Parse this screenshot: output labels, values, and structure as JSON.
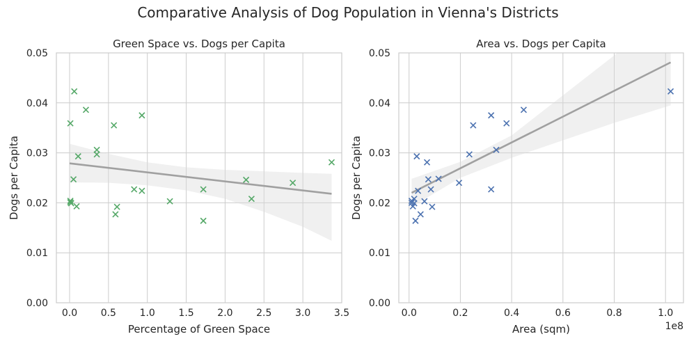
{
  "figure": {
    "suptitle": "Comparative Analysis of Dog Population in Vienna's Districts"
  },
  "chart_data": [
    {
      "type": "scatter",
      "title": "Green Space vs. Dogs per Capita",
      "xlabel": "Percentage of Green Space",
      "ylabel": "Dogs per Capita",
      "xlim": [
        -0.17,
        3.5
      ],
      "ylim": [
        0,
        0.05
      ],
      "xticks": [
        "0.0",
        "0.5",
        "1.0",
        "1.5",
        "2.0",
        "2.5",
        "3.0",
        "3.5"
      ],
      "xtick_values": [
        0,
        0.5,
        1.0,
        1.5,
        2.0,
        2.5,
        3.0,
        3.5
      ],
      "yticks": [
        "0.00",
        "0.01",
        "0.02",
        "0.03",
        "0.04",
        "0.05"
      ],
      "ytick_values": [
        0,
        0.01,
        0.02,
        0.03,
        0.04,
        0.05
      ],
      "grid": true,
      "marker": "x",
      "point_color": "#55a868",
      "regression_color": "#a0a0a0",
      "points": [
        {
          "x": 0.06,
          "y": 0.0423
        },
        {
          "x": 0.21,
          "y": 0.0386
        },
        {
          "x": 0.01,
          "y": 0.0359
        },
        {
          "x": 0.57,
          "y": 0.0355
        },
        {
          "x": 0.93,
          "y": 0.0375
        },
        {
          "x": 0.35,
          "y": 0.0306
        },
        {
          "x": 0.35,
          "y": 0.0297
        },
        {
          "x": 0.11,
          "y": 0.0293
        },
        {
          "x": 0.05,
          "y": 0.0247
        },
        {
          "x": 0.83,
          "y": 0.0227
        },
        {
          "x": 0.93,
          "y": 0.0224
        },
        {
          "x": 1.29,
          "y": 0.0203
        },
        {
          "x": 1.72,
          "y": 0.0227
        },
        {
          "x": 1.72,
          "y": 0.0164
        },
        {
          "x": 0.01,
          "y": 0.0204
        },
        {
          "x": 0.01,
          "y": 0.0201
        },
        {
          "x": 0.02,
          "y": 0.0199
        },
        {
          "x": 0.09,
          "y": 0.0193
        },
        {
          "x": 0.61,
          "y": 0.0192
        },
        {
          "x": 0.59,
          "y": 0.0177
        },
        {
          "x": 2.27,
          "y": 0.0246
        },
        {
          "x": 2.34,
          "y": 0.0208
        },
        {
          "x": 2.87,
          "y": 0.024
        },
        {
          "x": 3.37,
          "y": 0.0281
        }
      ],
      "regression": {
        "x0": 0.0,
        "y0": 0.0279,
        "x1": 3.37,
        "y1": 0.0218
      },
      "ci_upper": [
        [
          0.0,
          0.0318
        ],
        [
          0.5,
          0.0298
        ],
        [
          1.0,
          0.0281
        ],
        [
          1.5,
          0.0271
        ],
        [
          2.0,
          0.0266
        ],
        [
          2.5,
          0.0263
        ],
        [
          3.0,
          0.026
        ],
        [
          3.37,
          0.0258
        ]
      ],
      "ci_lower": [
        [
          0.0,
          0.0241
        ],
        [
          0.5,
          0.024
        ],
        [
          1.0,
          0.0235
        ],
        [
          1.5,
          0.0225
        ],
        [
          2.0,
          0.0208
        ],
        [
          2.5,
          0.0182
        ],
        [
          3.0,
          0.0152
        ],
        [
          3.37,
          0.0124
        ]
      ]
    },
    {
      "type": "scatter",
      "title": "Area vs. Dogs per Capita",
      "xlabel": "Area (sqm)",
      "ylabel": "Dogs per Capita",
      "offset_label": "1e8",
      "xlim": [
        -0.04,
        1.07
      ],
      "ylim": [
        0,
        0.05
      ],
      "xticks": [
        "0.0",
        "0.2",
        "0.4",
        "0.6",
        "0.8",
        "1.0"
      ],
      "xtick_values": [
        0,
        0.2,
        0.4,
        0.6,
        0.8,
        1.0
      ],
      "yticks": [
        "0.00",
        "0.01",
        "0.02",
        "0.03",
        "0.04",
        "0.05"
      ],
      "ytick_values": [
        0,
        0.01,
        0.02,
        0.03,
        0.04,
        0.05
      ],
      "grid": true,
      "marker": "x",
      "point_color": "#4c72b0",
      "regression_color": "#a0a0a0",
      "points": [
        {
          "x": 1.02,
          "y": 0.0423
        },
        {
          "x": 0.447,
          "y": 0.0386
        },
        {
          "x": 0.38,
          "y": 0.0359
        },
        {
          "x": 0.32,
          "y": 0.0375
        },
        {
          "x": 0.25,
          "y": 0.0355
        },
        {
          "x": 0.34,
          "y": 0.0306
        },
        {
          "x": 0.235,
          "y": 0.0297
        },
        {
          "x": 0.03,
          "y": 0.0293
        },
        {
          "x": 0.07,
          "y": 0.0281
        },
        {
          "x": 0.075,
          "y": 0.0247
        },
        {
          "x": 0.115,
          "y": 0.0248
        },
        {
          "x": 0.32,
          "y": 0.0227
        },
        {
          "x": 0.195,
          "y": 0.024
        },
        {
          "x": 0.085,
          "y": 0.0227
        },
        {
          "x": 0.035,
          "y": 0.0224
        },
        {
          "x": 0.06,
          "y": 0.0203
        },
        {
          "x": 0.09,
          "y": 0.0192
        },
        {
          "x": 0.045,
          "y": 0.0177
        },
        {
          "x": 0.025,
          "y": 0.0164
        },
        {
          "x": 0.01,
          "y": 0.0204
        },
        {
          "x": 0.01,
          "y": 0.02
        },
        {
          "x": 0.015,
          "y": 0.0193
        },
        {
          "x": 0.02,
          "y": 0.0208
        },
        {
          "x": 0.02,
          "y": 0.0199
        }
      ],
      "regression": {
        "x0": 0.01,
        "y0": 0.022,
        "x1": 1.02,
        "y1": 0.0481
      },
      "ci_upper": [
        [
          0.01,
          0.0248
        ],
        [
          0.2,
          0.0282
        ],
        [
          0.4,
          0.0335
        ],
        [
          0.6,
          0.0415
        ],
        [
          0.8,
          0.0495
        ],
        [
          1.02,
          0.059
        ]
      ],
      "ci_lower": [
        [
          0.01,
          0.0192
        ],
        [
          0.2,
          0.025
        ],
        [
          0.4,
          0.029
        ],
        [
          0.6,
          0.0325
        ],
        [
          0.8,
          0.036
        ],
        [
          1.02,
          0.0395
        ]
      ]
    }
  ]
}
